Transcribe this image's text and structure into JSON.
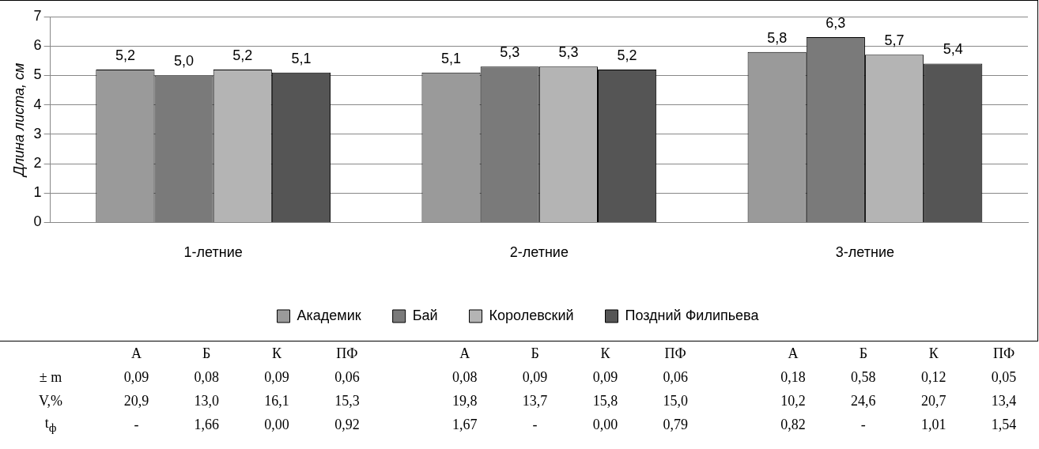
{
  "chart_data": {
    "type": "bar",
    "ylabel": "Длина листа, см",
    "categories": [
      "1-летние",
      "2-летние",
      "3-летние"
    ],
    "series": [
      {
        "name": "Академик",
        "color": "#9a9a9a",
        "values": [
          5.2,
          5.1,
          5.8
        ],
        "value_labels": [
          "5,2",
          "5,1",
          "5,8"
        ]
      },
      {
        "name": "Бай",
        "color": "#7a7a7a",
        "values": [
          5.0,
          5.3,
          6.3
        ],
        "value_labels": [
          "5,0",
          "5,3",
          "6,3"
        ]
      },
      {
        "name": "Королевский",
        "color": "#b4b4b4",
        "values": [
          5.2,
          5.3,
          5.7
        ],
        "value_labels": [
          "5,2",
          "5,3",
          "5,7"
        ]
      },
      {
        "name": "Поздний Филипьева",
        "color": "#555555",
        "values": [
          5.1,
          5.2,
          5.4
        ],
        "value_labels": [
          "5,1",
          "5,2",
          "5,4"
        ]
      }
    ],
    "ylim": [
      0,
      7
    ],
    "yticks": [
      0,
      1,
      2,
      3,
      4,
      5,
      6,
      7
    ],
    "grid": "y",
    "legend": "bottom",
    "annotations": [
      "\tА\tБ\tК\tПФ\tА\tБ\tК\tПФ\tА\tБ\tК\tПФ",
      "± m\t0,09\t0,08\t0,09\t0,06\t0,08\t0,09\t0,09\t0,06\t0,18\t0,58\t0,12\t0,05",
      "V,%\t20,9\t13,0\t16,1\t15,3\t19,8\t13,7\t15,8\t15,0\t10,2\t24,6\t20,7\t13,4",
      "t$_{ф}$\t-\t1,66\t0,00\t0,92\t1,67\t-\t0,00\t0,79\t0,82\t-\t1,01\t1,54"
    ]
  }
}
